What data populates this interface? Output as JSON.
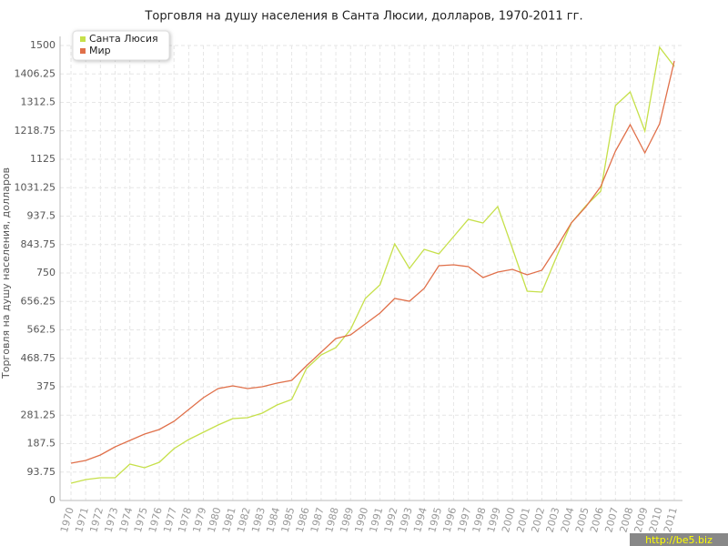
{
  "chart_data": {
    "type": "line",
    "title": "Торговля на душу населения в Санта Люсии, долларов, 1970-2011 гг.",
    "ylabel": "Торговля на душу населения, долларов",
    "watermark": "http://be5.biz",
    "categories": [
      "1970",
      "1971",
      "1972",
      "1973",
      "1974",
      "1975",
      "1976",
      "1977",
      "1978",
      "1979",
      "1980",
      "1981",
      "1982",
      "1983",
      "1984",
      "1985",
      "1986",
      "1987",
      "1988",
      "1989",
      "1990",
      "1991",
      "1992",
      "1993",
      "1994",
      "1995",
      "1996",
      "1997",
      "1998",
      "1999",
      "2000",
      "2001",
      "2002",
      "2003",
      "2004",
      "2005",
      "2006",
      "2007",
      "2008",
      "2009",
      "2010",
      "2011"
    ],
    "series": [
      {
        "name": "Санта Люсия",
        "color": "#c6e04a",
        "values": [
          57,
          69,
          75,
          75,
          120,
          108,
          126,
          171,
          201,
          225,
          249,
          270,
          273,
          288,
          315,
          333,
          435,
          480,
          504,
          564,
          666,
          711,
          846,
          765,
          828,
          813,
          870,
          927,
          915,
          969,
          831,
          690,
          687,
          804,
          915,
          972,
          1020,
          1302,
          1347,
          1218,
          1494,
          1431
        ]
      },
      {
        "name": "Мир",
        "color": "#e0704a",
        "values": [
          123,
          132,
          150,
          177,
          198,
          219,
          234,
          261,
          300,
          339,
          369,
          378,
          369,
          375,
          387,
          396,
          444,
          489,
          534,
          546,
          582,
          618,
          666,
          657,
          699,
          774,
          777,
          771,
          735,
          753,
          762,
          744,
          759,
          834,
          915,
          969,
          1035,
          1152,
          1239,
          1146,
          1242,
          1449
        ]
      }
    ],
    "ylim": [
      0,
      1500
    ],
    "yticks": [
      0,
      93.75,
      187.5,
      281.25,
      375,
      468.75,
      562.5,
      656.25,
      750,
      843.75,
      937.5,
      1031.25,
      1125,
      1218.75,
      1312.5,
      1406.25,
      1500
    ],
    "grid": true,
    "legend": "top-left"
  }
}
